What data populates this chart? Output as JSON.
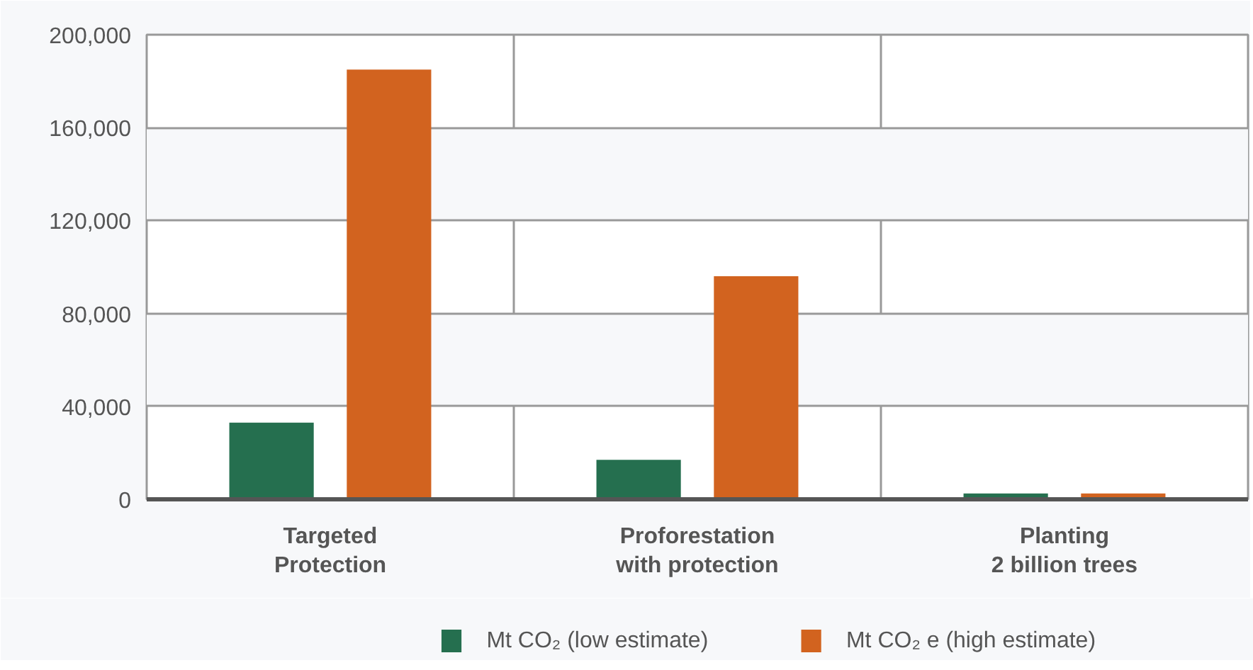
{
  "chart_data": {
    "type": "bar",
    "categories": [
      "Targeted\nProtection",
      "Proforestation\nwith protection",
      "Planting\n2 billion trees"
    ],
    "series": [
      {
        "name": "Mt CO₂ (low estimate)",
        "color": "#256f4f",
        "values": [
          33000,
          17000,
          2500
        ]
      },
      {
        "name": "Mt CO₂ e (high estimate)",
        "color": "#d2631f",
        "values": [
          185000,
          96000,
          2500
        ]
      }
    ],
    "ylim": [
      0,
      200000
    ],
    "yticks": [
      {
        "value": 0,
        "label": "0"
      },
      {
        "value": 40000,
        "label": "40,000"
      },
      {
        "value": 80000,
        "label": "80,000"
      },
      {
        "value": 120000,
        "label": "120,000"
      },
      {
        "value": 160000,
        "label": "160,000"
      },
      {
        "value": 200000,
        "label": "200,000"
      }
    ],
    "grid": true,
    "legend": "bottom"
  }
}
